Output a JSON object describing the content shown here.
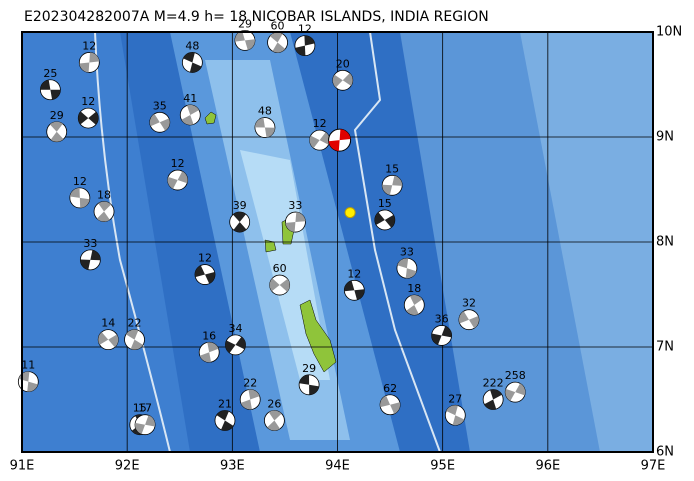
{
  "map": {
    "title": "E202304282007A  M=4.9  h= 18 NICOBAR ISLANDS, INDIA REGION",
    "xlim": [
      91,
      97
    ],
    "ylim": [
      6,
      10
    ],
    "xticks": [
      {
        "value": 91,
        "label": "91E"
      },
      {
        "value": 92,
        "label": "92E"
      },
      {
        "value": 93,
        "label": "93E"
      },
      {
        "value": 94,
        "label": "94E"
      },
      {
        "value": 95,
        "label": "95E"
      },
      {
        "value": 96,
        "label": "96E"
      },
      {
        "value": 97,
        "label": "97E"
      }
    ],
    "yticks": [
      {
        "value": 6,
        "label": "6N"
      },
      {
        "value": 7,
        "label": "7N"
      },
      {
        "value": 8,
        "label": "8N"
      },
      {
        "value": 9,
        "label": "9N"
      },
      {
        "value": 10,
        "label": "10N"
      }
    ],
    "grid": true,
    "main_event": {
      "lon": 94.02,
      "lat": 8.97,
      "color": "#e00000"
    },
    "epicenter": {
      "lon": 94.12,
      "lat": 8.28,
      "color": "#ffee00"
    },
    "events": [
      {
        "lon": 91.27,
        "lat": 9.45,
        "depth": 25
      },
      {
        "lon": 91.33,
        "lat": 9.05,
        "depth": 29
      },
      {
        "lon": 91.64,
        "lat": 9.71,
        "depth": 12
      },
      {
        "lon": 91.63,
        "lat": 9.18,
        "depth": 12
      },
      {
        "lon": 91.55,
        "lat": 8.42,
        "depth": 12
      },
      {
        "lon": 91.78,
        "lat": 8.29,
        "depth": 18
      },
      {
        "lon": 91.65,
        "lat": 7.83,
        "depth": 33
      },
      {
        "lon": 91.82,
        "lat": 7.07,
        "depth": 14
      },
      {
        "lon": 91.06,
        "lat": 6.67,
        "depth": 11
      },
      {
        "lon": 92.12,
        "lat": 6.26,
        "depth": 15
      },
      {
        "lon": 92.17,
        "lat": 6.26,
        "depth": 17
      },
      {
        "lon": 92.31,
        "lat": 9.14,
        "depth": 35
      },
      {
        "lon": 92.62,
        "lat": 9.71,
        "depth": 48
      },
      {
        "lon": 92.6,
        "lat": 9.21,
        "depth": 41
      },
      {
        "lon": 92.48,
        "lat": 8.59,
        "depth": 12
      },
      {
        "lon": 92.74,
        "lat": 7.69,
        "depth": 12
      },
      {
        "lon": 92.07,
        "lat": 7.07,
        "depth": 22
      },
      {
        "lon": 92.78,
        "lat": 6.95,
        "depth": 16
      },
      {
        "lon": 93.03,
        "lat": 7.02,
        "depth": 34
      },
      {
        "lon": 93.12,
        "lat": 9.92,
        "depth": 29
      },
      {
        "lon": 93.43,
        "lat": 9.9,
        "depth": 60
      },
      {
        "lon": 93.69,
        "lat": 9.87,
        "depth": 12
      },
      {
        "lon": 94.05,
        "lat": 9.54,
        "depth": 20
      },
      {
        "lon": 93.31,
        "lat": 9.09,
        "depth": 48
      },
      {
        "lon": 93.07,
        "lat": 8.19,
        "depth": 39
      },
      {
        "lon": 93.6,
        "lat": 8.19,
        "depth": 33
      },
      {
        "lon": 93.45,
        "lat": 7.59,
        "depth": 60
      },
      {
        "lon": 93.73,
        "lat": 6.64,
        "depth": 29
      },
      {
        "lon": 93.4,
        "lat": 6.3,
        "depth": 26
      },
      {
        "lon": 94.52,
        "lat": 8.54,
        "depth": 15
      },
      {
        "lon": 94.45,
        "lat": 8.21,
        "depth": 15
      },
      {
        "lon": 94.66,
        "lat": 7.75,
        "depth": 33
      },
      {
        "lon": 94.73,
        "lat": 7.4,
        "depth": 18
      },
      {
        "lon": 94.99,
        "lat": 7.11,
        "depth": 36
      },
      {
        "lon": 95.25,
        "lat": 7.26,
        "depth": 32
      },
      {
        "lon": 95.12,
        "lat": 6.35,
        "depth": 27
      },
      {
        "lon": 95.48,
        "lat": 6.5,
        "depth": 222
      },
      {
        "lon": 95.69,
        "lat": 6.57,
        "depth": 258
      },
      {
        "lon": 94.5,
        "lat": 6.45,
        "depth": 62
      },
      {
        "lon": 92.93,
        "lat": 6.3,
        "depth": 21
      },
      {
        "lon": 93.17,
        "lat": 6.5,
        "depth": 22
      },
      {
        "lon": 93.83,
        "lat": 8.97,
        "depth": 12
      },
      {
        "lon": 94.16,
        "lat": 7.54,
        "depth": 12
      }
    ]
  }
}
